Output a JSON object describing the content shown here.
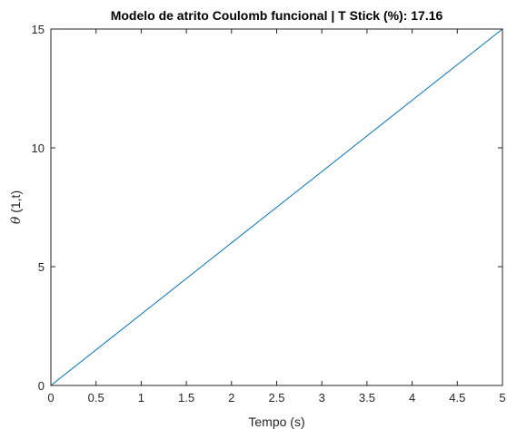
{
  "chart_data": {
    "type": "line",
    "title": "Modelo de atrito Coulomb funcional | T Stick (%): 17.16",
    "xlabel": "Tempo (s)",
    "ylabel": {
      "symbol": "θ",
      "rest": " (1,t)"
    },
    "xlim": [
      0,
      5
    ],
    "ylim": [
      0,
      15
    ],
    "xticks": [
      0,
      0.5,
      1,
      1.5,
      2,
      2.5,
      3,
      3.5,
      4,
      4.5,
      5
    ],
    "yticks": [
      0,
      5,
      10,
      15
    ],
    "xtick_labels": [
      "0",
      "0.5",
      "1",
      "1.5",
      "2",
      "2.5",
      "3",
      "3.5",
      "4",
      "4.5",
      "5"
    ],
    "ytick_labels": [
      "0",
      "5",
      "10",
      "15"
    ],
    "grid": false,
    "series": [
      {
        "x": [
          0,
          5
        ],
        "y": [
          0,
          15
        ],
        "color": "#0072bd"
      }
    ]
  }
}
